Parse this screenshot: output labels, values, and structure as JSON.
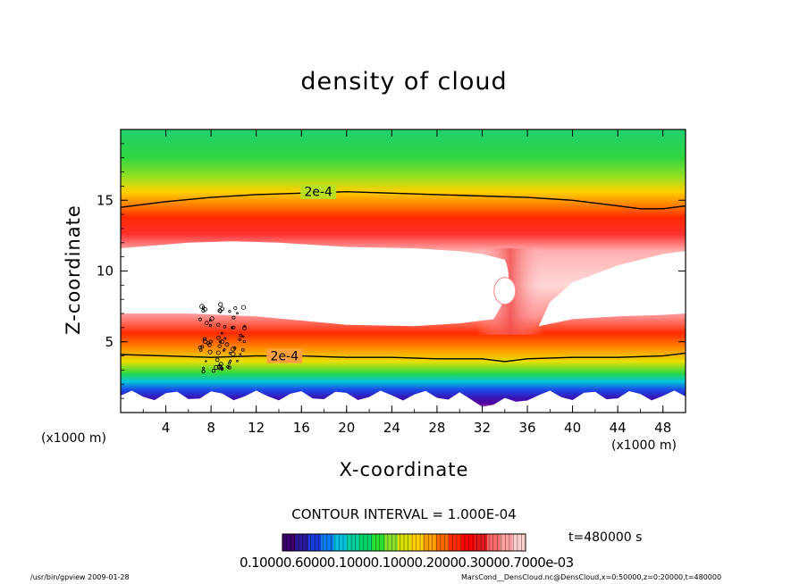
{
  "chart_data": {
    "type": "heatmap",
    "title": "density of cloud",
    "xlabel": "X-coordinate",
    "ylabel": "Z-coordinate",
    "x_unit_label": "(x1000 m)",
    "xlim": [
      0,
      50
    ],
    "ylim": [
      0,
      20
    ],
    "x_ticks": [
      4,
      8,
      12,
      16,
      20,
      24,
      28,
      32,
      36,
      40,
      44,
      48
    ],
    "y_ticks": [
      5,
      10,
      15
    ],
    "contour_interval_text": "CONTOUR INTERVAL = 1.000E-04",
    "contour_labels": [
      {
        "text": "2e-4",
        "x": 17.5,
        "z": 15.6
      },
      {
        "text": "2e-4",
        "x": 14.5,
        "z": 4.0
      }
    ],
    "upper_band_2e4_contour": {
      "x": [
        0,
        4,
        8,
        12,
        16,
        20,
        24,
        28,
        32,
        36,
        40,
        44,
        46,
        48,
        50
      ],
      "z": [
        14.5,
        14.9,
        15.2,
        15.4,
        15.5,
        15.6,
        15.5,
        15.4,
        15.3,
        15.2,
        15.0,
        14.6,
        14.4,
        14.4,
        14.6
      ]
    },
    "lower_band_2e4_contour": {
      "x": [
        0,
        4,
        8,
        12,
        16,
        20,
        24,
        28,
        32,
        34,
        36,
        40,
        44,
        48,
        50
      ],
      "z": [
        4.1,
        4.0,
        3.9,
        4.0,
        4.0,
        3.9,
        3.9,
        3.8,
        3.8,
        3.6,
        3.8,
        3.9,
        3.9,
        4.0,
        4.2
      ]
    },
    "cloud_free_gap": {
      "left_top": {
        "x": [
          0,
          6,
          10,
          14,
          20,
          26,
          30,
          32,
          34
        ],
        "z": [
          11.6,
          12.0,
          12.1,
          12.0,
          11.7,
          11.6,
          11.4,
          11.2,
          10.8
        ]
      },
      "left_bottom": {
        "x": [
          0,
          6,
          12,
          20,
          26,
          30,
          33
        ],
        "z": [
          7.0,
          7.0,
          6.8,
          6.2,
          6.1,
          6.3,
          6.6
        ]
      },
      "right_top": {
        "x": [
          38,
          40,
          44,
          48,
          50
        ],
        "z": [
          7.8,
          9.2,
          10.4,
          11.2,
          11.4
        ]
      },
      "right_bottom": {
        "x": [
          37,
          40,
          44,
          48,
          50
        ],
        "z": [
          6.1,
          6.6,
          6.8,
          6.9,
          7.0
        ]
      },
      "hole": {
        "x": 34,
        "z": 8.6
      }
    },
    "colorbar": {
      "colors": [
        "#3a006a",
        "#2a1a9a",
        "#1a3ad8",
        "#0a7cf0",
        "#00c0e0",
        "#00d0a0",
        "#00d46a",
        "#2ae030",
        "#8ae02a",
        "#d8e000",
        "#ffd000",
        "#ffa000",
        "#ff6a00",
        "#ff2a00",
        "#ff0000",
        "#e01a1a",
        "#ff6a6a",
        "#ffa0a0",
        "#ffd0d0"
      ],
      "tick_labels_text": "0.10000.60000.10000.10000.20000.30000.7000e-03"
    },
    "time_label": "t=480000  s"
  },
  "footer": {
    "left": "/usr/bin/gpview   2009-01-28",
    "right": "MarsCond__DensCloud.nc@DensCloud,x=0:50000,z=0:20000,t=480000"
  }
}
